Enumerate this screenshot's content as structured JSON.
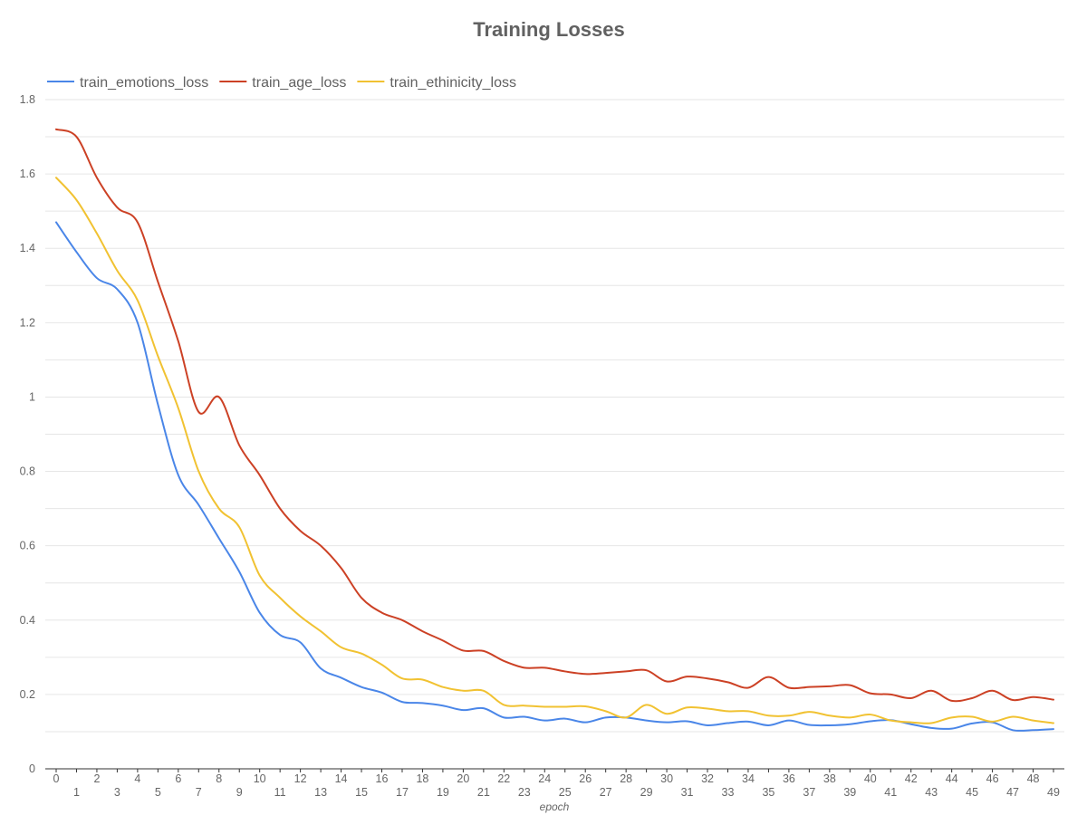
{
  "chart_data": {
    "type": "line",
    "title": "Training Losses",
    "xlabel": "epoch",
    "ylabel": "",
    "xlim": [
      0,
      49
    ],
    "ylim": [
      0,
      1.8
    ],
    "yticks": [
      "0",
      "0.2",
      "0.4",
      "0.6",
      "0.8",
      "1",
      "1.2",
      "1.4",
      "1.6",
      "1.8"
    ],
    "grid": true,
    "legend_position": "top-left",
    "x": [
      0,
      1,
      2,
      3,
      4,
      5,
      6,
      7,
      8,
      9,
      10,
      11,
      12,
      13,
      14,
      15,
      16,
      17,
      18,
      19,
      20,
      21,
      22,
      23,
      24,
      25,
      26,
      27,
      28,
      29,
      30,
      31,
      32,
      33,
      34,
      35,
      36,
      37,
      38,
      39,
      40,
      41,
      42,
      43,
      44,
      45,
      46,
      47,
      48,
      49
    ],
    "series": [
      {
        "name": "train_emotions_loss",
        "color": "#4a86e8",
        "values": [
          1.47,
          1.39,
          1.32,
          1.29,
          1.2,
          0.98,
          0.79,
          0.71,
          0.62,
          0.53,
          0.42,
          0.36,
          0.34,
          0.27,
          0.245,
          0.22,
          0.205,
          0.18,
          0.177,
          0.17,
          0.158,
          0.163,
          0.138,
          0.14,
          0.13,
          0.135,
          0.125,
          0.138,
          0.138,
          0.13,
          0.125,
          0.128,
          0.117,
          0.123,
          0.127,
          0.117,
          0.13,
          0.118,
          0.117,
          0.12,
          0.128,
          0.131,
          0.12,
          0.11,
          0.108,
          0.122,
          0.125,
          0.104,
          0.104,
          0.107
        ]
      },
      {
        "name": "train_age_loss",
        "color": "#cc4125",
        "values": [
          1.72,
          1.7,
          1.59,
          1.51,
          1.47,
          1.31,
          1.15,
          0.96,
          1.0,
          0.87,
          0.79,
          0.7,
          0.64,
          0.6,
          0.54,
          0.46,
          0.42,
          0.4,
          0.37,
          0.345,
          0.318,
          0.317,
          0.29,
          0.272,
          0.272,
          0.262,
          0.255,
          0.258,
          0.262,
          0.265,
          0.235,
          0.248,
          0.243,
          0.233,
          0.218,
          0.247,
          0.218,
          0.22,
          0.222,
          0.225,
          0.203,
          0.2,
          0.19,
          0.21,
          0.183,
          0.19,
          0.21,
          0.185,
          0.193,
          0.186
        ]
      },
      {
        "name": "train_ethinicity_loss",
        "color": "#f1c232",
        "values": [
          1.59,
          1.53,
          1.44,
          1.34,
          1.26,
          1.11,
          0.97,
          0.8,
          0.7,
          0.65,
          0.52,
          0.46,
          0.41,
          0.37,
          0.327,
          0.31,
          0.28,
          0.243,
          0.24,
          0.22,
          0.21,
          0.21,
          0.172,
          0.17,
          0.167,
          0.167,
          0.168,
          0.155,
          0.138,
          0.172,
          0.148,
          0.165,
          0.162,
          0.155,
          0.155,
          0.143,
          0.143,
          0.153,
          0.143,
          0.138,
          0.146,
          0.13,
          0.125,
          0.123,
          0.138,
          0.14,
          0.127,
          0.14,
          0.13,
          0.123
        ]
      }
    ]
  }
}
